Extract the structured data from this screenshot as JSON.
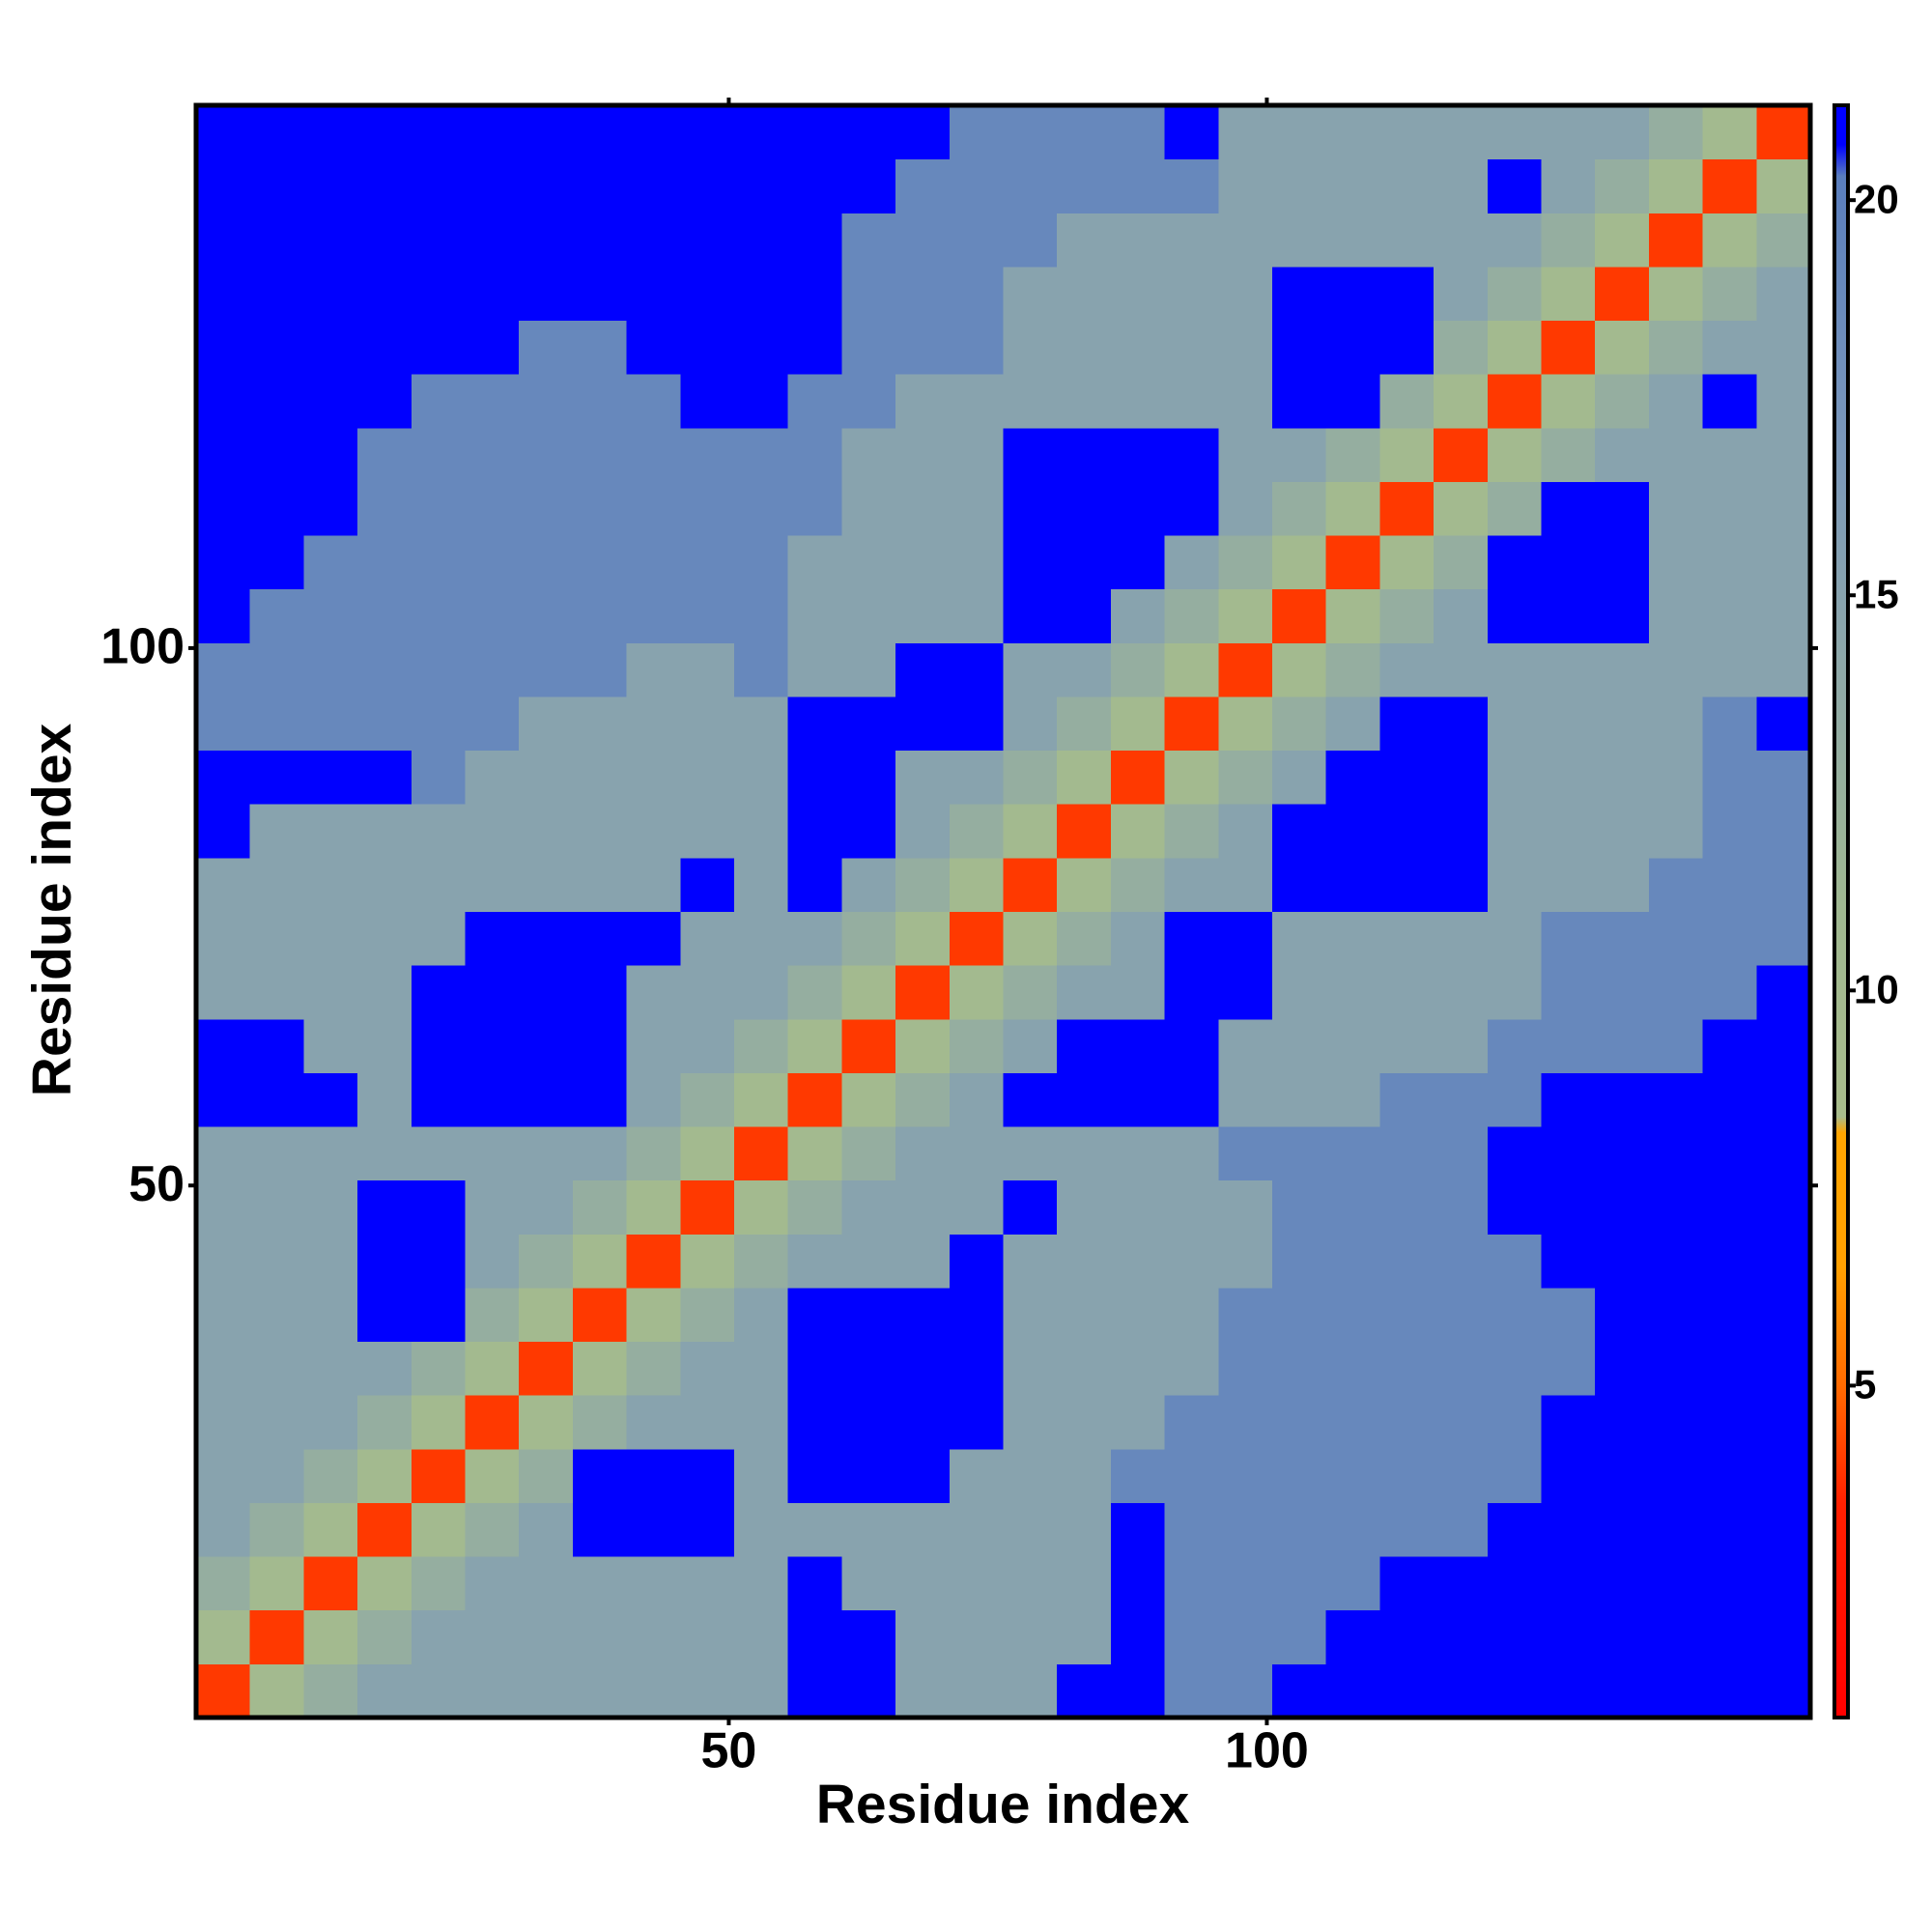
{
  "chart_data": {
    "type": "heatmap",
    "xlabel": "Residue index",
    "ylabel": "Residue index",
    "x_bins": [
      0.5,
      5.5,
      10.5,
      15.5,
      20.5,
      25.5,
      30.5,
      35.5,
      40.5,
      45.5,
      50.5,
      55.5,
      60.5,
      65.5,
      70.5,
      75.5,
      80.5,
      85.5,
      90.5,
      95.5,
      100.5,
      105.5,
      110.5,
      115.5,
      120.5,
      125.5,
      130.5,
      135.5,
      140.5,
      145.5,
      150.5
    ],
    "y_bins": [
      0.5,
      5.5,
      10.5,
      15.5,
      20.5,
      25.5,
      30.5,
      35.5,
      40.5,
      45.5,
      50.5,
      55.5,
      60.5,
      65.5,
      70.5,
      75.5,
      80.5,
      85.5,
      90.5,
      95.5,
      100.5,
      105.5,
      110.5,
      115.5,
      120.5,
      125.5,
      130.5,
      135.5,
      140.5,
      145.5,
      150.5
    ],
    "xlim": [
      0.5,
      150.5
    ],
    "xticks": [
      50,
      100
    ],
    "ylim": [
      0.5,
      150.5
    ],
    "yticks": [
      50,
      100
    ],
    "z": [
      [
        4,
        10,
        13,
        15,
        15,
        15,
        15,
        15,
        15,
        15,
        15,
        21,
        21,
        15,
        15,
        15,
        21,
        21,
        19,
        19,
        21,
        21,
        21,
        21,
        21,
        21,
        21,
        21,
        21,
        21
      ],
      [
        10,
        4,
        10,
        13,
        15,
        15,
        15,
        15,
        15,
        15,
        15,
        21,
        21,
        15,
        15,
        15,
        15,
        21,
        19,
        19,
        19,
        21,
        21,
        21,
        21,
        21,
        21,
        21,
        21,
        21
      ],
      [
        13,
        10,
        4,
        10,
        13,
        15,
        15,
        15,
        15,
        15,
        15,
        21,
        15,
        15,
        15,
        15,
        15,
        21,
        19,
        19,
        19,
        19,
        21,
        21,
        21,
        21,
        21,
        21,
        21,
        21
      ],
      [
        15,
        13,
        10,
        4,
        10,
        13,
        15,
        21,
        21,
        21,
        15,
        15,
        15,
        15,
        15,
        15,
        15,
        21,
        19,
        19,
        19,
        19,
        19,
        19,
        21,
        21,
        21,
        21,
        21,
        21
      ],
      [
        15,
        15,
        13,
        10,
        4,
        10,
        13,
        21,
        21,
        21,
        15,
        21,
        21,
        21,
        15,
        15,
        15,
        19,
        19,
        19,
        19,
        19,
        19,
        19,
        19,
        21,
        21,
        21,
        21,
        21
      ],
      [
        15,
        15,
        15,
        13,
        10,
        4,
        10,
        13,
        15,
        15,
        15,
        21,
        21,
        21,
        21,
        15,
        15,
        15,
        19,
        19,
        19,
        19,
        19,
        19,
        19,
        21,
        21,
        21,
        21,
        21
      ],
      [
        15,
        15,
        15,
        15,
        13,
        10,
        4,
        10,
        13,
        15,
        15,
        21,
        21,
        21,
        21,
        15,
        15,
        15,
        15,
        19,
        19,
        19,
        19,
        19,
        19,
        19,
        21,
        21,
        21,
        21
      ],
      [
        15,
        15,
        15,
        21,
        21,
        13,
        10,
        4,
        10,
        13,
        15,
        21,
        21,
        21,
        21,
        15,
        15,
        15,
        15,
        19,
        19,
        19,
        19,
        19,
        19,
        19,
        21,
        21,
        21,
        21
      ],
      [
        15,
        15,
        15,
        21,
        21,
        15,
        13,
        10,
        4,
        10,
        13,
        15,
        15,
        15,
        21,
        15,
        15,
        15,
        15,
        15,
        19,
        19,
        19,
        19,
        19,
        21,
        21,
        21,
        21,
        21
      ],
      [
        15,
        15,
        15,
        21,
        21,
        15,
        15,
        13,
        10,
        4,
        10,
        13,
        15,
        15,
        15,
        21,
        15,
        15,
        15,
        15,
        19,
        19,
        19,
        19,
        21,
        21,
        21,
        21,
        21,
        21
      ],
      [
        15,
        15,
        15,
        15,
        15,
        15,
        15,
        15,
        13,
        10,
        4,
        10,
        13,
        15,
        15,
        15,
        15,
        15,
        15,
        19,
        19,
        19,
        19,
        19,
        21,
        21,
        21,
        21,
        21,
        21
      ],
      [
        21,
        21,
        21,
        15,
        21,
        21,
        21,
        21,
        15,
        13,
        10,
        4,
        10,
        13,
        15,
        21,
        21,
        21,
        21,
        15,
        15,
        15,
        19,
        19,
        19,
        21,
        21,
        21,
        21,
        21
      ],
      [
        21,
        21,
        15,
        15,
        21,
        21,
        21,
        21,
        15,
        15,
        13,
        10,
        4,
        10,
        13,
        15,
        21,
        21,
        21,
        15,
        15,
        15,
        15,
        15,
        19,
        19,
        19,
        19,
        21,
        21
      ],
      [
        15,
        15,
        15,
        15,
        21,
        21,
        21,
        21,
        15,
        15,
        15,
        13,
        10,
        4,
        10,
        13,
        15,
        15,
        21,
        21,
        15,
        15,
        15,
        15,
        15,
        19,
        19,
        19,
        19,
        21
      ],
      [
        15,
        15,
        15,
        15,
        15,
        21,
        21,
        21,
        21,
        15,
        15,
        15,
        13,
        10,
        4,
        10,
        13,
        15,
        21,
        21,
        15,
        15,
        15,
        15,
        15,
        19,
        19,
        19,
        19,
        19
      ],
      [
        15,
        15,
        15,
        15,
        15,
        15,
        15,
        15,
        15,
        21,
        15,
        21,
        15,
        13,
        10,
        4,
        10,
        13,
        15,
        15,
        21,
        21,
        21,
        21,
        15,
        15,
        15,
        19,
        19,
        19
      ],
      [
        21,
        15,
        15,
        15,
        15,
        15,
        15,
        15,
        15,
        15,
        15,
        21,
        21,
        15,
        13,
        10,
        4,
        10,
        13,
        15,
        21,
        21,
        21,
        21,
        15,
        15,
        15,
        15,
        19,
        19
      ],
      [
        21,
        21,
        21,
        21,
        19,
        15,
        15,
        15,
        15,
        15,
        15,
        21,
        21,
        15,
        15,
        13,
        10,
        4,
        10,
        13,
        15,
        21,
        21,
        21,
        15,
        15,
        15,
        15,
        19,
        19
      ],
      [
        19,
        19,
        19,
        19,
        19,
        19,
        15,
        15,
        15,
        15,
        15,
        21,
        21,
        21,
        21,
        15,
        13,
        10,
        4,
        10,
        13,
        15,
        21,
        21,
        15,
        15,
        15,
        15,
        19,
        21
      ],
      [
        19,
        19,
        19,
        19,
        19,
        19,
        19,
        19,
        15,
        15,
        19,
        15,
        15,
        21,
        21,
        15,
        15,
        13,
        10,
        4,
        10,
        13,
        15,
        15,
        15,
        15,
        15,
        15,
        15,
        15
      ],
      [
        21,
        19,
        19,
        19,
        19,
        19,
        19,
        19,
        19,
        19,
        19,
        15,
        15,
        15,
        15,
        21,
        21,
        15,
        13,
        10,
        4,
        10,
        13,
        15,
        21,
        21,
        21,
        15,
        15,
        15
      ],
      [
        21,
        21,
        19,
        19,
        19,
        19,
        19,
        19,
        19,
        19,
        19,
        15,
        15,
        15,
        15,
        21,
        21,
        21,
        15,
        13,
        10,
        4,
        10,
        13,
        21,
        21,
        21,
        15,
        15,
        15
      ],
      [
        21,
        21,
        21,
        19,
        19,
        19,
        19,
        19,
        19,
        19,
        19,
        19,
        15,
        15,
        15,
        21,
        21,
        21,
        21,
        15,
        13,
        10,
        4,
        10,
        13,
        21,
        21,
        15,
        15,
        15
      ],
      [
        21,
        21,
        21,
        19,
        19,
        19,
        19,
        19,
        19,
        19,
        19,
        19,
        15,
        15,
        15,
        21,
        21,
        21,
        21,
        15,
        15,
        13,
        10,
        4,
        10,
        13,
        15,
        15,
        15,
        15
      ],
      [
        21,
        21,
        21,
        21,
        19,
        19,
        19,
        19,
        19,
        21,
        21,
        19,
        19,
        15,
        15,
        15,
        15,
        15,
        15,
        15,
        21,
        21,
        13,
        10,
        4,
        10,
        13,
        15,
        21,
        15
      ],
      [
        21,
        21,
        21,
        21,
        21,
        21,
        19,
        19,
        21,
        21,
        21,
        21,
        19,
        19,
        19,
        15,
        15,
        15,
        15,
        15,
        21,
        21,
        21,
        13,
        10,
        4,
        10,
        13,
        15,
        15
      ],
      [
        21,
        21,
        21,
        21,
        21,
        21,
        21,
        21,
        21,
        21,
        21,
        21,
        19,
        19,
        19,
        15,
        15,
        15,
        15,
        15,
        21,
        21,
        21,
        15,
        13,
        10,
        4,
        10,
        13,
        15
      ],
      [
        21,
        21,
        21,
        21,
        21,
        21,
        21,
        21,
        21,
        21,
        21,
        21,
        19,
        19,
        19,
        19,
        15,
        15,
        15,
        15,
        15,
        15,
        15,
        15,
        15,
        13,
        10,
        4,
        10,
        13
      ],
      [
        21,
        21,
        21,
        21,
        21,
        21,
        21,
        21,
        21,
        21,
        21,
        21,
        21,
        19,
        19,
        19,
        19,
        19,
        19,
        15,
        15,
        15,
        15,
        15,
        21,
        15,
        13,
        10,
        4,
        10
      ],
      [
        21,
        21,
        21,
        21,
        21,
        21,
        21,
        21,
        21,
        21,
        21,
        21,
        21,
        21,
        19,
        19,
        19,
        19,
        21,
        15,
        15,
        15,
        15,
        15,
        15,
        15,
        15,
        13,
        10,
        4
      ]
    ],
    "colorbar": {
      "lim": [
        0.8,
        21.2
      ],
      "ticks": [
        5,
        10,
        15,
        20
      ],
      "colorscale": [
        [
          0.8,
          "#ff0000"
        ],
        [
          3.5,
          "#ff2000"
        ],
        [
          5,
          "#ff6a00"
        ],
        [
          6.5,
          "#ffa000"
        ],
        [
          8.2,
          "#ffa500"
        ],
        [
          8.4,
          "#a9bd8c"
        ],
        [
          11,
          "#a0b891"
        ],
        [
          14,
          "#8fa9a8"
        ],
        [
          17,
          "#7a97bb"
        ],
        [
          20.3,
          "#5a7ebd"
        ],
        [
          20.7,
          "#0000ff"
        ],
        [
          21.2,
          "#0000ff"
        ]
      ]
    }
  }
}
